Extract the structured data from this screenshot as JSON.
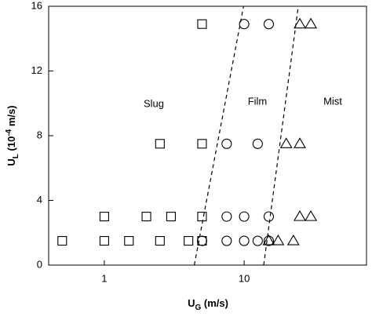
{
  "chart_data": {
    "type": "scatter",
    "x_label": {
      "main": "U",
      "sub": "G",
      "rest": " (m/s)"
    },
    "y_label": {
      "main": "U",
      "sub": "L",
      "rest": " (10",
      "sup": "-4",
      "end": " m/s)"
    },
    "xscale": "log",
    "xlim": [
      0.4,
      75
    ],
    "ylim": [
      0,
      16
    ],
    "xticks": [
      1,
      10
    ],
    "yticks": [
      0,
      4,
      8,
      12,
      16
    ],
    "series": [
      {
        "name": "Slug",
        "marker": "square",
        "color": "#000000",
        "x": [
          0.5,
          1,
          1.5,
          2.5,
          4,
          5,
          1,
          2,
          3,
          5,
          2.5,
          5,
          5
        ],
        "values": [
          1.5,
          1.5,
          1.5,
          1.5,
          1.5,
          1.5,
          3,
          3,
          3,
          3,
          7.5,
          7.5,
          14.9
        ]
      },
      {
        "name": "Film",
        "marker": "circle",
        "color": "#000000",
        "x": [
          5,
          7.5,
          10,
          12.5,
          15,
          7.5,
          10,
          15,
          7.5,
          12.5,
          10,
          15
        ],
        "values": [
          1.5,
          1.5,
          1.5,
          1.5,
          1.5,
          3,
          3,
          3,
          7.5,
          7.5,
          14.9,
          14.9
        ]
      },
      {
        "name": "Mist",
        "marker": "triangle",
        "color": "#000000",
        "x": [
          15,
          17.5,
          22.5,
          25,
          30,
          20,
          25,
          25,
          30
        ],
        "values": [
          1.5,
          1.5,
          1.5,
          3,
          3,
          7.5,
          7.5,
          14.9,
          14.9
        ]
      }
    ],
    "boundaries": [
      {
        "x": [
          4.4,
          9.9
        ],
        "y": [
          0,
          16
        ]
      },
      {
        "x": [
          13.8,
          24.4
        ],
        "y": [
          0,
          16
        ]
      }
    ]
  }
}
